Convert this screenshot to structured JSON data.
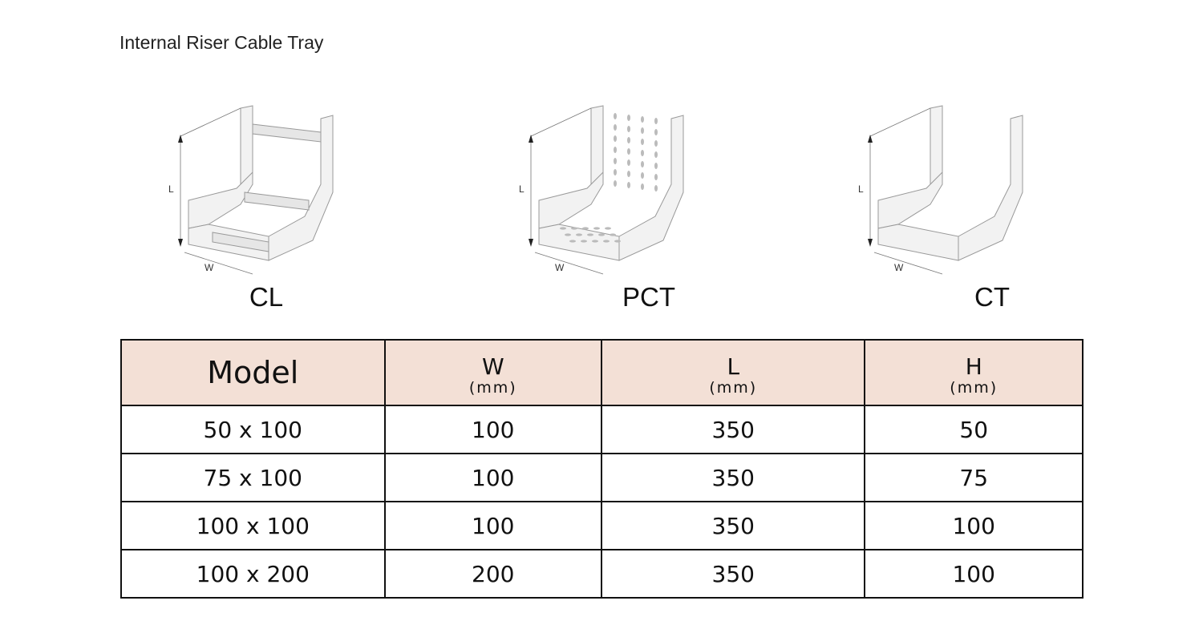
{
  "title": "Internal Riser Cable Tray",
  "figures": [
    {
      "caption": "CL",
      "dim_l": "L",
      "dim_w": "W",
      "style": "ladder"
    },
    {
      "caption": "PCT",
      "dim_l": "L",
      "dim_w": "W",
      "style": "perforated"
    },
    {
      "caption": "CT",
      "dim_l": "L",
      "dim_w": "W",
      "style": "solid"
    }
  ],
  "table": {
    "header_color": "#f3e0d6",
    "headers": [
      {
        "label": "Model",
        "unit": ""
      },
      {
        "label": "W",
        "unit": "(mm)"
      },
      {
        "label": "L",
        "unit": "(mm)"
      },
      {
        "label": "H",
        "unit": "(mm)"
      }
    ],
    "rows": [
      [
        "50 x 100",
        "100",
        "350",
        "50"
      ],
      [
        "75 x 100",
        "100",
        "350",
        "75"
      ],
      [
        "100 x 100",
        "100",
        "350",
        "100"
      ],
      [
        "100 x 200",
        "200",
        "350",
        "100"
      ]
    ]
  }
}
